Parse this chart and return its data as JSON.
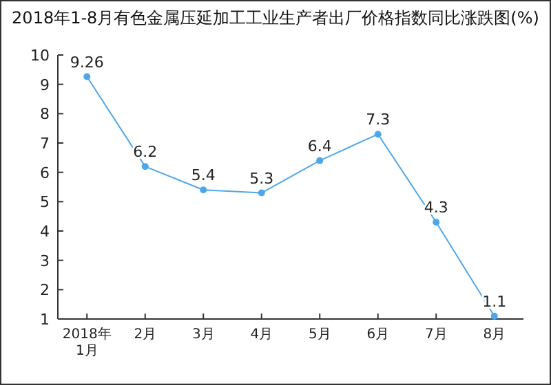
{
  "chart_data": {
    "type": "line",
    "title": "2018年1-8月有色金属压延加工工业生产者出厂价格指数同比涨跌图(%)",
    "categories": [
      "2018年\n1月",
      "2月",
      "3月",
      "4月",
      "5月",
      "6月",
      "7月",
      "8月"
    ],
    "series": [
      {
        "color": "#4da6ea",
        "values": [
          9.26,
          6.2,
          5.4,
          5.3,
          6.4,
          7.3,
          4.3,
          1.1
        ]
      }
    ],
    "ylim": [
      1,
      10
    ],
    "yticks": [
      1,
      2,
      3,
      4,
      5,
      6,
      7,
      8,
      9,
      10
    ],
    "grid": false,
    "marker": "circle",
    "line_style": "solid",
    "data_labels": true
  }
}
